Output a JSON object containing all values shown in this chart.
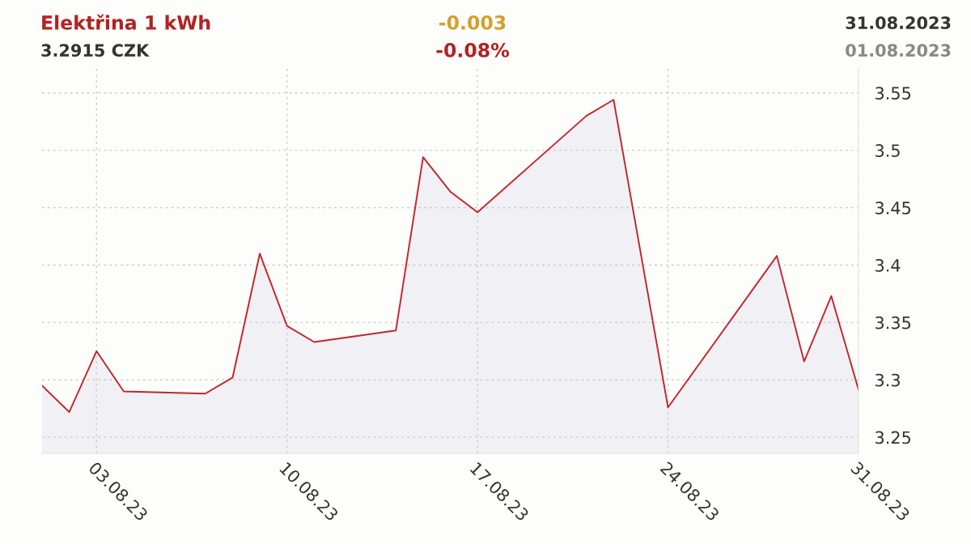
{
  "chart_data": {
    "type": "area",
    "title": "Elektřina 1 kWh",
    "subtitle": "3.2915 CZK",
    "annotations": [
      "-0.003",
      "-0.08%",
      "31.08.2023",
      "01.08.2023"
    ],
    "x": [
      "2023-08-01",
      "2023-08-02",
      "2023-08-03",
      "2023-08-04",
      "2023-08-07",
      "2023-08-08",
      "2023-08-09",
      "2023-08-10",
      "2023-08-11",
      "2023-08-14",
      "2023-08-15",
      "2023-08-16",
      "2023-08-17",
      "2023-08-21",
      "2023-08-22",
      "2023-08-24",
      "2023-08-28",
      "2023-08-29",
      "2023-08-30",
      "2023-08-31"
    ],
    "series": [
      {
        "color": "#c0282d",
        "values": [
          3.295,
          3.272,
          3.325,
          3.29,
          3.288,
          3.302,
          3.41,
          3.347,
          3.333,
          3.343,
          3.494,
          3.464,
          3.446,
          3.53,
          3.544,
          3.276,
          3.408,
          3.316,
          3.373,
          3.2915
        ]
      }
    ],
    "xlim": [
      "2023-08-01",
      "2023-08-31"
    ],
    "ylim": [
      3.236,
      3.571
    ],
    "xticks": [
      {
        "value": "2023-08-03",
        "label": "03.08.23"
      },
      {
        "value": "2023-08-10",
        "label": "10.08.23"
      },
      {
        "value": "2023-08-17",
        "label": "17.08.23"
      },
      {
        "value": "2023-08-24",
        "label": "24.08.23"
      },
      {
        "value": "2023-08-31",
        "label": "31.08.23"
      }
    ],
    "yticks": [
      3.25,
      3.3,
      3.35,
      3.4,
      3.45,
      3.5,
      3.55
    ],
    "grid": true,
    "marker": "none",
    "line_style": "solid",
    "legend": false
  }
}
